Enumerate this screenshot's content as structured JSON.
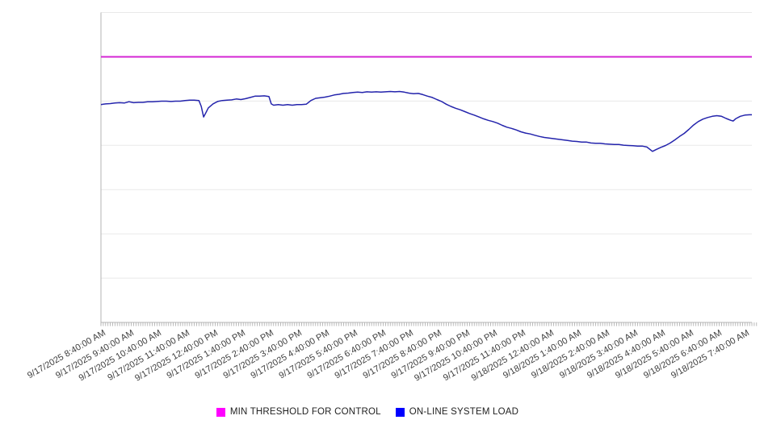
{
  "chart_data": {
    "type": "line",
    "title": "",
    "x_axis": {
      "unit": "minutes since 9/17/2025 8:40:00 AM",
      "range_minutes": [
        0,
        1395
      ],
      "major_tick_interval_minutes": 60,
      "minor_tick_interval_minutes": 5,
      "tick_labels": [
        "9/17/2025 8:40:00 AM",
        "9/17/2025 9:40:00 AM",
        "9/17/2025 10:40:00 AM",
        "9/17/2025 11:40:00 AM",
        "9/17/2025 12:40:00 PM",
        "9/17/2025 1:40:00 PM",
        "9/17/2025 2:40:00 PM",
        "9/17/2025 3:40:00 PM",
        "9/17/2025 4:40:00 PM",
        "9/17/2025 5:40:00 PM",
        "9/17/2025 6:40:00 PM",
        "9/17/2025 7:40:00 PM",
        "9/17/2025 8:40:00 PM",
        "9/17/2025 9:40:00 PM",
        "9/17/2025 10:40:00 PM",
        "9/17/2025 11:40:00 PM",
        "9/18/2025 12:40:00 AM",
        "9/18/2025 1:40:00 AM",
        "9/18/2025 2:40:00 AM",
        "9/18/2025 3:40:00 AM",
        "9/18/2025 4:40:00 AM",
        "9/18/2025 5:40:00 AM",
        "9/18/2025 6:40:00 AM",
        "9/18/2025 7:40:00 AM"
      ]
    },
    "y_axis": {
      "tick_labels_visible": false,
      "unit": "percent of plot height (no y-axis labels shown)",
      "range": [
        0,
        100
      ],
      "gridline_divisions": 7,
      "grid_on": true
    },
    "legend_position": "bottom",
    "series": [
      {
        "name": "MIN THRESHOLD FOR CONTROL",
        "kind": "threshold",
        "swatch_color": "#ff00ff",
        "line_color": "#d426d4",
        "value": 85.7
      },
      {
        "name": "ON-LINE SYSTEM LOAD",
        "kind": "line",
        "swatch_color": "#0000ff",
        "line_color": "#2424ac",
        "points": [
          [
            0,
            70.3
          ],
          [
            10,
            70.5
          ],
          [
            20,
            70.6
          ],
          [
            30,
            70.8
          ],
          [
            40,
            70.9
          ],
          [
            50,
            70.8
          ],
          [
            60,
            71.2
          ],
          [
            70,
            70.9
          ],
          [
            80,
            71.0
          ],
          [
            90,
            71.0
          ],
          [
            100,
            71.2
          ],
          [
            110,
            71.2
          ],
          [
            120,
            71.3
          ],
          [
            130,
            71.4
          ],
          [
            140,
            71.4
          ],
          [
            150,
            71.3
          ],
          [
            160,
            71.4
          ],
          [
            170,
            71.4
          ],
          [
            180,
            71.6
          ],
          [
            190,
            71.7
          ],
          [
            200,
            71.7
          ],
          [
            210,
            71.6
          ],
          [
            215,
            69.7
          ],
          [
            220,
            66.3
          ],
          [
            225,
            67.7
          ],
          [
            230,
            69.2
          ],
          [
            240,
            70.5
          ],
          [
            250,
            71.3
          ],
          [
            260,
            71.6
          ],
          [
            270,
            71.7
          ],
          [
            280,
            71.8
          ],
          [
            290,
            72.1
          ],
          [
            300,
            71.9
          ],
          [
            310,
            72.2
          ],
          [
            320,
            72.6
          ],
          [
            330,
            73.0
          ],
          [
            340,
            73.0
          ],
          [
            350,
            73.1
          ],
          [
            360,
            72.9
          ],
          [
            365,
            70.5
          ],
          [
            370,
            70.1
          ],
          [
            380,
            70.3
          ],
          [
            390,
            70.1
          ],
          [
            400,
            70.3
          ],
          [
            410,
            70.1
          ],
          [
            420,
            70.3
          ],
          [
            430,
            70.3
          ],
          [
            440,
            70.4
          ],
          [
            450,
            71.6
          ],
          [
            460,
            72.3
          ],
          [
            470,
            72.5
          ],
          [
            480,
            72.7
          ],
          [
            490,
            73.0
          ],
          [
            500,
            73.4
          ],
          [
            510,
            73.6
          ],
          [
            520,
            73.9
          ],
          [
            530,
            74.0
          ],
          [
            540,
            74.2
          ],
          [
            550,
            74.3
          ],
          [
            560,
            74.2
          ],
          [
            570,
            74.4
          ],
          [
            580,
            74.3
          ],
          [
            590,
            74.4
          ],
          [
            600,
            74.3
          ],
          [
            610,
            74.4
          ],
          [
            620,
            74.5
          ],
          [
            630,
            74.4
          ],
          [
            640,
            74.5
          ],
          [
            650,
            74.3
          ],
          [
            660,
            74.0
          ],
          [
            670,
            73.8
          ],
          [
            680,
            73.9
          ],
          [
            690,
            73.5
          ],
          [
            700,
            73.0
          ],
          [
            710,
            72.6
          ],
          [
            720,
            71.9
          ],
          [
            730,
            71.3
          ],
          [
            740,
            70.4
          ],
          [
            750,
            69.7
          ],
          [
            760,
            69.1
          ],
          [
            770,
            68.6
          ],
          [
            780,
            68.0
          ],
          [
            790,
            67.4
          ],
          [
            800,
            66.9
          ],
          [
            810,
            66.3
          ],
          [
            820,
            65.7
          ],
          [
            830,
            65.2
          ],
          [
            840,
            64.8
          ],
          [
            850,
            64.3
          ],
          [
            860,
            63.6
          ],
          [
            870,
            63.0
          ],
          [
            880,
            62.6
          ],
          [
            890,
            62.1
          ],
          [
            900,
            61.5
          ],
          [
            910,
            61.1
          ],
          [
            920,
            60.8
          ],
          [
            930,
            60.4
          ],
          [
            940,
            60.0
          ],
          [
            950,
            59.7
          ],
          [
            960,
            59.5
          ],
          [
            970,
            59.3
          ],
          [
            980,
            59.1
          ],
          [
            990,
            58.9
          ],
          [
            1000,
            58.7
          ],
          [
            1010,
            58.5
          ],
          [
            1020,
            58.4
          ],
          [
            1030,
            58.2
          ],
          [
            1040,
            58.2
          ],
          [
            1050,
            57.9
          ],
          [
            1060,
            57.8
          ],
          [
            1070,
            57.8
          ],
          [
            1080,
            57.6
          ],
          [
            1090,
            57.5
          ],
          [
            1100,
            57.4
          ],
          [
            1110,
            57.4
          ],
          [
            1120,
            57.2
          ],
          [
            1130,
            57.1
          ],
          [
            1140,
            57.0
          ],
          [
            1150,
            56.9
          ],
          [
            1160,
            56.9
          ],
          [
            1170,
            56.6
          ],
          [
            1182,
            55.2
          ],
          [
            1190,
            55.8
          ],
          [
            1200,
            56.5
          ],
          [
            1210,
            57.1
          ],
          [
            1220,
            57.9
          ],
          [
            1230,
            58.9
          ],
          [
            1240,
            60.0
          ],
          [
            1250,
            61.0
          ],
          [
            1260,
            62.3
          ],
          [
            1270,
            63.7
          ],
          [
            1280,
            64.8
          ],
          [
            1290,
            65.6
          ],
          [
            1300,
            66.1
          ],
          [
            1310,
            66.5
          ],
          [
            1320,
            66.7
          ],
          [
            1330,
            66.5
          ],
          [
            1340,
            65.8
          ],
          [
            1350,
            65.2
          ],
          [
            1355,
            65.0
          ],
          [
            1360,
            65.7
          ],
          [
            1370,
            66.5
          ],
          [
            1380,
            66.9
          ],
          [
            1390,
            67.0
          ],
          [
            1395,
            67.0
          ]
        ]
      }
    ],
    "style_colors": {
      "background": "#ffffff",
      "gridline": "#e9e9e9",
      "axis": "#b3b3b3",
      "tick": "#ababab",
      "x_label_text": "#3d3d3d",
      "legend_text": "#222222"
    }
  }
}
